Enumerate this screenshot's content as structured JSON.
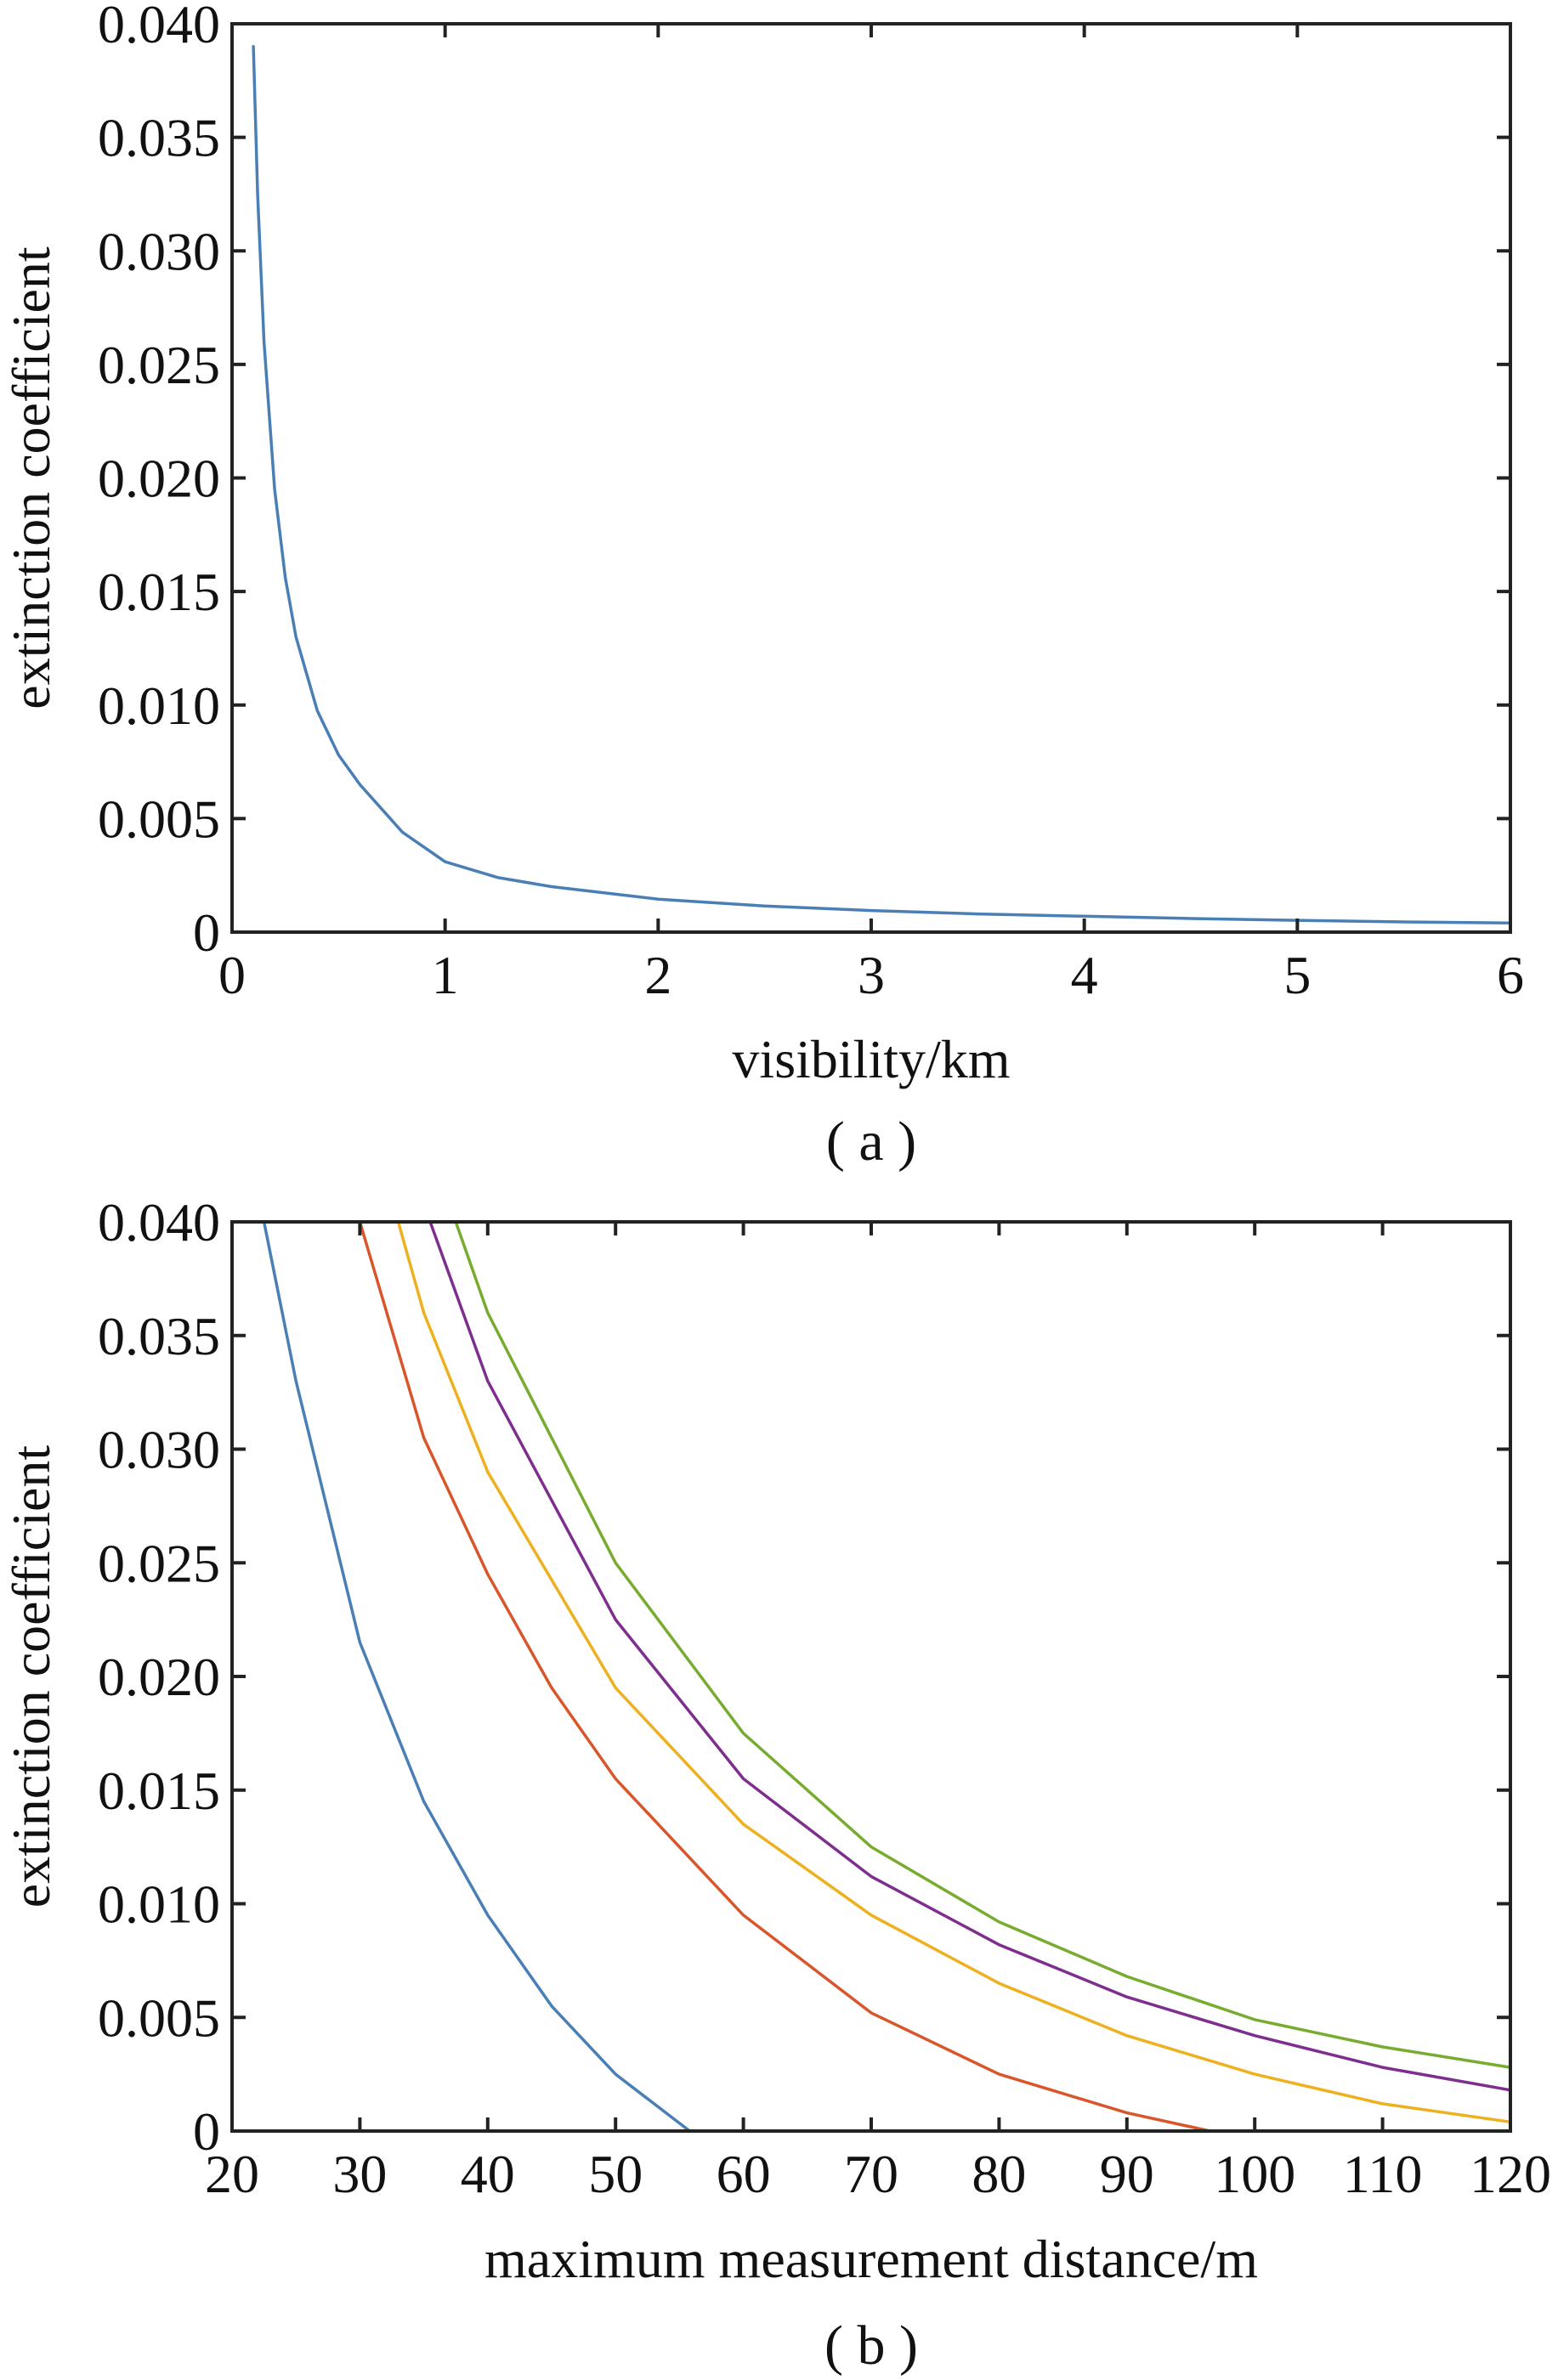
{
  "chart_data": [
    {
      "type": "line",
      "caption": "( a )",
      "xlabel": "visibility/km",
      "ylabel": "extinction coefficient",
      "xlim": [
        0,
        6
      ],
      "ylim": [
        0,
        0.04
      ],
      "xticks": [
        "0",
        "1",
        "2",
        "3",
        "4",
        "5",
        "6"
      ],
      "yticks": [
        "0",
        "0.005",
        "0.010",
        "0.015",
        "0.020",
        "0.025",
        "0.030",
        "0.035",
        "0.040"
      ],
      "grid": false,
      "legend": "none",
      "series": [
        {
          "color": "#4a7fb5",
          "x": [
            0.1,
            0.12,
            0.15,
            0.2,
            0.25,
            0.3,
            0.4,
            0.5,
            0.6,
            0.8,
            1.0,
            1.25,
            1.5,
            2.0,
            2.5,
            3.0,
            3.5,
            4.0,
            4.5,
            5.0,
            5.5,
            6.0
          ],
          "y": [
            0.039,
            0.0325,
            0.026,
            0.0195,
            0.0156,
            0.013,
            0.00975,
            0.0078,
            0.0065,
            0.0044,
            0.0031,
            0.0024,
            0.002,
            0.00145,
            0.00115,
            0.00095,
            0.0008,
            0.0007,
            0.0006,
            0.00052,
            0.00045,
            0.0004
          ]
        }
      ]
    },
    {
      "type": "line",
      "caption": "( b )",
      "xlabel": "maximum measurement distance/m",
      "ylabel": "extinction coefficient",
      "xlim": [
        20,
        120
      ],
      "ylim": [
        0,
        0.04
      ],
      "xticks": [
        "20",
        "30",
        "40",
        "50",
        "60",
        "70",
        "80",
        "90",
        "100",
        "110",
        "120"
      ],
      "yticks": [
        "0",
        "0.005",
        "0.010",
        "0.015",
        "0.020",
        "0.025",
        "0.030",
        "0.035",
        "0.040"
      ],
      "grid": false,
      "legend": "none",
      "series": [
        {
          "color": "#4a7fb5",
          "x": [
            22.5,
            25,
            30,
            35,
            40,
            45,
            50,
            55.8
          ],
          "y": [
            0.04,
            0.033,
            0.0215,
            0.0145,
            0.0095,
            0.0055,
            0.0025,
            0.0
          ]
        },
        {
          "color": "#d9562b",
          "x": [
            30,
            35,
            40,
            45,
            50,
            60,
            70,
            80,
            90,
            96.5
          ],
          "y": [
            0.04,
            0.0305,
            0.0245,
            0.0195,
            0.0155,
            0.0095,
            0.0052,
            0.0025,
            0.0008,
            0.0
          ]
        },
        {
          "color": "#edb120",
          "x": [
            33,
            35,
            40,
            50,
            60,
            70,
            80,
            90,
            100,
            110,
            120
          ],
          "y": [
            0.04,
            0.036,
            0.029,
            0.0195,
            0.0135,
            0.0095,
            0.0065,
            0.0042,
            0.0025,
            0.0012,
            0.0004
          ]
        },
        {
          "color": "#7e2f8e",
          "x": [
            35.5,
            40,
            50,
            60,
            70,
            80,
            90,
            100,
            110,
            120
          ],
          "y": [
            0.04,
            0.033,
            0.0225,
            0.0155,
            0.0112,
            0.0082,
            0.0059,
            0.0042,
            0.0028,
            0.0018
          ]
        },
        {
          "color": "#77ac30",
          "x": [
            37.5,
            40,
            50,
            60,
            70,
            80,
            90,
            100,
            110,
            120
          ],
          "y": [
            0.04,
            0.036,
            0.025,
            0.0175,
            0.0125,
            0.0092,
            0.0068,
            0.0049,
            0.0037,
            0.0028
          ]
        }
      ]
    }
  ]
}
